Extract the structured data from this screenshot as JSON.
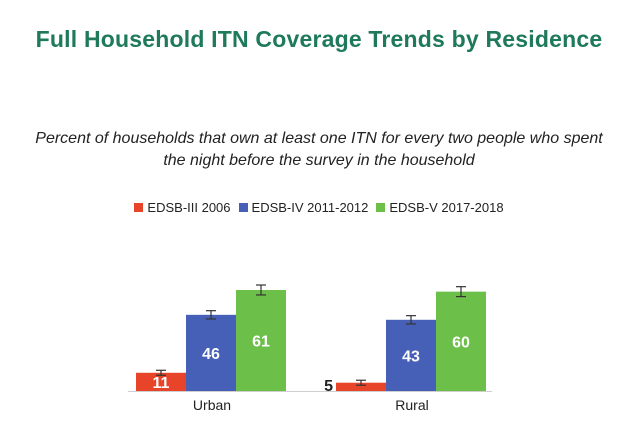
{
  "chart_data": {
    "type": "bar",
    "title": "Full Household ITN Coverage Trends by Residence",
    "subtitle_lines": [
      "Percent of households that own at least one ITN for every two people who spent",
      "the night before the survey in the household"
    ],
    "categories": [
      "Urban",
      "Rural"
    ],
    "series": [
      {
        "name": "EDSB-III 2006",
        "values": [
          11,
          5
        ],
        "color": "#e8442a"
      },
      {
        "name": "EDSB-IV 2011-2012",
        "values": [
          46,
          43
        ],
        "color": "#4660b8"
      },
      {
        "name": "EDSB-V 2017-2018",
        "values": [
          61,
          60
        ],
        "color": "#6cc04a"
      }
    ],
    "value_labels": [
      [
        "11",
        "46",
        "61"
      ],
      [
        "5",
        "43",
        "60"
      ]
    ],
    "ylim": [
      0,
      70
    ],
    "grid": false,
    "legend_position": "top",
    "error_bars": true
  }
}
